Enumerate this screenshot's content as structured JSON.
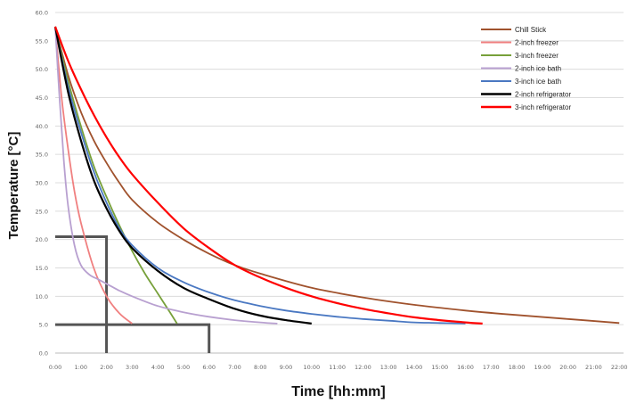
{
  "chart_data": {
    "type": "line",
    "xlabel": "Time [hh:mm]",
    "ylabel": "Temperature [°C]",
    "xlim": [
      0,
      1330
    ],
    "ylim": [
      0,
      60
    ],
    "grid": "horizontal",
    "legend_position": "top-right",
    "x_tick_values": [
      0,
      60,
      120,
      180,
      240,
      300,
      360,
      420,
      480,
      540,
      600,
      660,
      720,
      780,
      840,
      900,
      960,
      1020,
      1080,
      1140,
      1200,
      1260,
      1320
    ],
    "x_tick_labels": [
      "0:00",
      "1:00",
      "2:00",
      "3:00",
      "4:00",
      "5:00",
      "6:00",
      "7:00",
      "8:00",
      "9:00",
      "10:00",
      "11:00",
      "12:00",
      "13:00",
      "14:00",
      "15:00",
      "16:00",
      "17:00",
      "18:00",
      "19:00",
      "20:00",
      "21:00",
      "22:00"
    ],
    "y_tick_values": [
      0,
      5,
      10,
      15,
      20,
      25,
      30,
      35,
      40,
      45,
      50,
      55,
      60
    ],
    "y_tick_labels": [
      "0.0",
      "5.0",
      "10.0",
      "15.0",
      "20.0",
      "25.0",
      "30.0",
      "35.0",
      "40.0",
      "45.0",
      "50.0",
      "55.0",
      "60.0"
    ],
    "series": [
      {
        "name": "Chill Stick",
        "color": "#a0522d",
        "x": [
          0,
          30,
          60,
          90,
          120,
          150,
          180,
          240,
          300,
          360,
          420,
          480,
          600,
          720,
          840,
          960,
          1080,
          1200,
          1320
        ],
        "y": [
          57.5,
          49,
          42.5,
          37.5,
          33.5,
          30,
          27,
          23,
          20,
          17.5,
          15.5,
          14,
          11.5,
          9.8,
          8.5,
          7.5,
          6.7,
          6,
          5.3
        ]
      },
      {
        "name": "2-inch freezer",
        "color": "#f08080",
        "x": [
          0,
          15,
          30,
          45,
          60,
          90,
          120,
          150,
          180
        ],
        "y": [
          57.5,
          45,
          36,
          28.5,
          23,
          15,
          10,
          7,
          5.2
        ]
      },
      {
        "name": "3-inch freezer",
        "color": "#77a03a",
        "x": [
          0,
          30,
          60,
          90,
          120,
          150,
          180,
          210,
          240,
          270,
          285
        ],
        "y": [
          57.5,
          48,
          40,
          33,
          27.5,
          22.5,
          18,
          14,
          10.5,
          7,
          5.2
        ]
      },
      {
        "name": "2-inch ice bath",
        "color": "#b8a0d0",
        "x": [
          0,
          10,
          20,
          30,
          45,
          60,
          80,
          100,
          120,
          150,
          180,
          240,
          300,
          360,
          420,
          480,
          520
        ],
        "y": [
          57.5,
          45,
          34,
          26,
          19,
          15.5,
          13.8,
          13,
          12.2,
          11,
          10,
          8.3,
          7.2,
          6.4,
          5.8,
          5.4,
          5.2
        ]
      },
      {
        "name": "3-inch ice bath",
        "color": "#4a78c2",
        "x": [
          0,
          30,
          60,
          90,
          120,
          150,
          180,
          240,
          300,
          360,
          420,
          480,
          540,
          600,
          660,
          720,
          780,
          840,
          900,
          960
        ],
        "y": [
          57.5,
          47,
          39,
          32,
          26.5,
          22,
          19,
          15,
          12.5,
          10.7,
          9.3,
          8.3,
          7.5,
          6.9,
          6.4,
          6,
          5.7,
          5.4,
          5.3,
          5.2
        ]
      },
      {
        "name": "2-inch refrigerator",
        "color": "#000000",
        "x": [
          0,
          30,
          60,
          90,
          120,
          150,
          180,
          240,
          300,
          360,
          420,
          480,
          540,
          600
        ],
        "y": [
          57.5,
          46,
          37.5,
          30.5,
          25.5,
          21.5,
          18.5,
          14.5,
          11.5,
          9.5,
          7.8,
          6.6,
          5.8,
          5.2
        ]
      },
      {
        "name": "3-inch refrigerator",
        "color": "#ff0000",
        "x": [
          0,
          30,
          60,
          90,
          120,
          150,
          180,
          240,
          300,
          360,
          420,
          480,
          540,
          600,
          660,
          720,
          780,
          840,
          900,
          960,
          1000
        ],
        "y": [
          57.5,
          51.5,
          46.5,
          42,
          38,
          34.5,
          31.5,
          26.5,
          22,
          18.5,
          15.5,
          13.3,
          11.5,
          10,
          8.8,
          7.8,
          7,
          6.3,
          5.8,
          5.4,
          5.2
        ]
      }
    ],
    "reference_lines": [
      {
        "color": "#555555",
        "x": [
          0,
          120,
          120
        ],
        "y": [
          20.5,
          20.5,
          0
        ]
      },
      {
        "color": "#555555",
        "x": [
          0,
          360,
          360
        ],
        "y": [
          5,
          5,
          0
        ]
      }
    ]
  }
}
